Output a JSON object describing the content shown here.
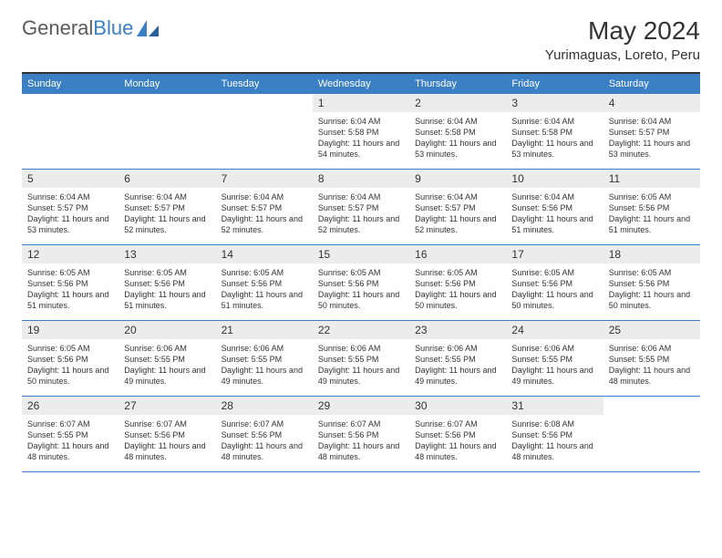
{
  "logo": {
    "text1": "General",
    "text2": "Blue"
  },
  "title": "May 2024",
  "location": "Yurimaguas, Loreto, Peru",
  "colors": {
    "header_bg": "#3b7fc4",
    "header_text": "#ffffff",
    "daynum_bg": "#ececec",
    "border_top": "#333333",
    "week_border": "#3b7fc4",
    "body_text": "#333333"
  },
  "day_names": [
    "Sunday",
    "Monday",
    "Tuesday",
    "Wednesday",
    "Thursday",
    "Friday",
    "Saturday"
  ],
  "weeks": [
    [
      {
        "num": "",
        "text": ""
      },
      {
        "num": "",
        "text": ""
      },
      {
        "num": "",
        "text": ""
      },
      {
        "num": "1",
        "text": "Sunrise: 6:04 AM\nSunset: 5:58 PM\nDaylight: 11 hours and 54 minutes."
      },
      {
        "num": "2",
        "text": "Sunrise: 6:04 AM\nSunset: 5:58 PM\nDaylight: 11 hours and 53 minutes."
      },
      {
        "num": "3",
        "text": "Sunrise: 6:04 AM\nSunset: 5:58 PM\nDaylight: 11 hours and 53 minutes."
      },
      {
        "num": "4",
        "text": "Sunrise: 6:04 AM\nSunset: 5:57 PM\nDaylight: 11 hours and 53 minutes."
      }
    ],
    [
      {
        "num": "5",
        "text": "Sunrise: 6:04 AM\nSunset: 5:57 PM\nDaylight: 11 hours and 53 minutes."
      },
      {
        "num": "6",
        "text": "Sunrise: 6:04 AM\nSunset: 5:57 PM\nDaylight: 11 hours and 52 minutes."
      },
      {
        "num": "7",
        "text": "Sunrise: 6:04 AM\nSunset: 5:57 PM\nDaylight: 11 hours and 52 minutes."
      },
      {
        "num": "8",
        "text": "Sunrise: 6:04 AM\nSunset: 5:57 PM\nDaylight: 11 hours and 52 minutes."
      },
      {
        "num": "9",
        "text": "Sunrise: 6:04 AM\nSunset: 5:57 PM\nDaylight: 11 hours and 52 minutes."
      },
      {
        "num": "10",
        "text": "Sunrise: 6:04 AM\nSunset: 5:56 PM\nDaylight: 11 hours and 51 minutes."
      },
      {
        "num": "11",
        "text": "Sunrise: 6:05 AM\nSunset: 5:56 PM\nDaylight: 11 hours and 51 minutes."
      }
    ],
    [
      {
        "num": "12",
        "text": "Sunrise: 6:05 AM\nSunset: 5:56 PM\nDaylight: 11 hours and 51 minutes."
      },
      {
        "num": "13",
        "text": "Sunrise: 6:05 AM\nSunset: 5:56 PM\nDaylight: 11 hours and 51 minutes."
      },
      {
        "num": "14",
        "text": "Sunrise: 6:05 AM\nSunset: 5:56 PM\nDaylight: 11 hours and 51 minutes."
      },
      {
        "num": "15",
        "text": "Sunrise: 6:05 AM\nSunset: 5:56 PM\nDaylight: 11 hours and 50 minutes."
      },
      {
        "num": "16",
        "text": "Sunrise: 6:05 AM\nSunset: 5:56 PM\nDaylight: 11 hours and 50 minutes."
      },
      {
        "num": "17",
        "text": "Sunrise: 6:05 AM\nSunset: 5:56 PM\nDaylight: 11 hours and 50 minutes."
      },
      {
        "num": "18",
        "text": "Sunrise: 6:05 AM\nSunset: 5:56 PM\nDaylight: 11 hours and 50 minutes."
      }
    ],
    [
      {
        "num": "19",
        "text": "Sunrise: 6:05 AM\nSunset: 5:56 PM\nDaylight: 11 hours and 50 minutes."
      },
      {
        "num": "20",
        "text": "Sunrise: 6:06 AM\nSunset: 5:55 PM\nDaylight: 11 hours and 49 minutes."
      },
      {
        "num": "21",
        "text": "Sunrise: 6:06 AM\nSunset: 5:55 PM\nDaylight: 11 hours and 49 minutes."
      },
      {
        "num": "22",
        "text": "Sunrise: 6:06 AM\nSunset: 5:55 PM\nDaylight: 11 hours and 49 minutes."
      },
      {
        "num": "23",
        "text": "Sunrise: 6:06 AM\nSunset: 5:55 PM\nDaylight: 11 hours and 49 minutes."
      },
      {
        "num": "24",
        "text": "Sunrise: 6:06 AM\nSunset: 5:55 PM\nDaylight: 11 hours and 49 minutes."
      },
      {
        "num": "25",
        "text": "Sunrise: 6:06 AM\nSunset: 5:55 PM\nDaylight: 11 hours and 48 minutes."
      }
    ],
    [
      {
        "num": "26",
        "text": "Sunrise: 6:07 AM\nSunset: 5:55 PM\nDaylight: 11 hours and 48 minutes."
      },
      {
        "num": "27",
        "text": "Sunrise: 6:07 AM\nSunset: 5:56 PM\nDaylight: 11 hours and 48 minutes."
      },
      {
        "num": "28",
        "text": "Sunrise: 6:07 AM\nSunset: 5:56 PM\nDaylight: 11 hours and 48 minutes."
      },
      {
        "num": "29",
        "text": "Sunrise: 6:07 AM\nSunset: 5:56 PM\nDaylight: 11 hours and 48 minutes."
      },
      {
        "num": "30",
        "text": "Sunrise: 6:07 AM\nSunset: 5:56 PM\nDaylight: 11 hours and 48 minutes."
      },
      {
        "num": "31",
        "text": "Sunrise: 6:08 AM\nSunset: 5:56 PM\nDaylight: 11 hours and 48 minutes."
      },
      {
        "num": "",
        "text": ""
      }
    ]
  ]
}
